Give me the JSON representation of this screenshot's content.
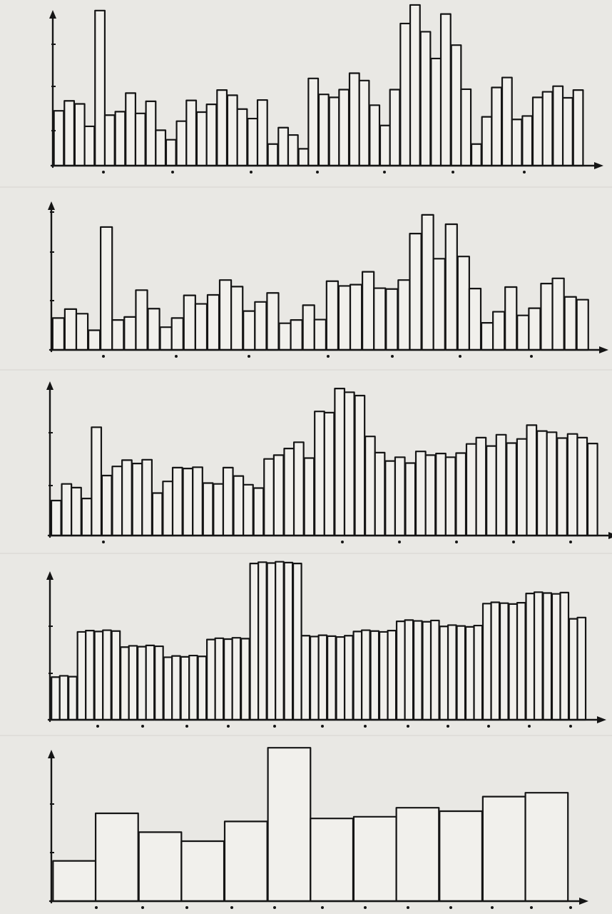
{
  "colors": {
    "paper": "#e9e8e4",
    "ink": "#151515",
    "bar_fill": "#f1f0ec"
  },
  "chart_data": [
    {
      "type": "bar",
      "title": "",
      "xlabel": "",
      "ylabel": "",
      "grid": false,
      "ylim": [
        0,
        3.6
      ],
      "values": [
        1.25,
        1.5,
        1.45,
        0.9,
        3.6,
        1.15,
        1.25,
        1.7,
        1.2,
        1.5,
        0.8,
        0.6,
        1.05,
        1.5,
        1.25,
        1.4,
        1.75,
        1.65,
        1.3,
        1.1,
        1.5,
        0.5,
        0.9,
        0.7,
        0.4,
        2.0,
        1.65,
        1.6,
        1.75,
        2.15,
        1.95,
        1.4,
        0.95,
        1.75,
        3.3,
        3.7,
        3.1,
        2.5,
        3.5,
        2.8,
        1.75,
        0.5,
        1.15,
        1.8,
        2.05,
        1.05,
        1.15,
        1.6,
        1.7,
        1.85,
        1.55,
        1.75
      ]
    },
    {
      "type": "bar",
      "title": "",
      "xlabel": "",
      "ylabel": "",
      "grid": false,
      "ylim": [
        0,
        3.6
      ],
      "values": [
        0.8,
        1.05,
        0.9,
        0.5,
        3.15,
        0.75,
        0.85,
        1.5,
        1.05,
        0.6,
        0.8,
        1.4,
        1.15,
        1.4,
        1.8,
        1.6,
        1.0,
        1.2,
        1.45,
        0.7,
        0.75,
        1.15,
        0.75,
        1.75,
        1.65,
        1.65,
        2.0,
        1.55,
        1.55,
        1.8,
        2.95,
        3.45,
        2.3,
        3.2,
        2.4,
        1.55,
        0.7,
        0.95,
        1.6,
        0.9,
        1.05,
        1.7,
        1.8,
        1.35,
        1.3
      ]
    },
    {
      "type": "bar",
      "title": "",
      "xlabel": "",
      "ylabel": "",
      "grid": false,
      "ylim": [
        0,
        3.6
      ],
      "values": [
        0.7,
        1.05,
        0.95,
        0.75,
        2.15,
        1.2,
        1.4,
        1.5,
        1.45,
        1.5,
        0.85,
        1.1,
        1.35,
        1.35,
        1.35,
        1.05,
        1.05,
        1.35,
        1.2,
        1.0,
        0.95,
        1.55,
        1.6,
        1.75,
        1.85,
        1.55,
        2.5,
        2.45,
        2.95,
        2.85,
        2.8,
        2.0,
        1.65,
        1.5,
        1.55,
        1.45,
        1.7,
        1.6,
        1.65,
        1.55,
        1.65,
        1.85,
        1.95,
        1.8,
        2.0,
        1.85,
        1.95,
        2.2,
        2.1,
        2.05,
        1.95,
        2.05,
        1.95,
        1.85
      ]
    },
    {
      "type": "bar",
      "title": "",
      "xlabel": "",
      "ylabel": "",
      "grid": false,
      "ylim": [
        0,
        3.6
      ],
      "values": [
        0.85,
        0.85,
        0.85,
        1.75,
        1.75,
        1.75,
        1.75,
        1.75,
        1.45,
        1.45,
        1.45,
        1.45,
        1.45,
        1.25,
        1.25,
        1.25,
        1.25,
        1.25,
        1.6,
        1.6,
        1.6,
        1.6,
        1.6,
        3.1,
        3.1,
        3.1,
        3.1,
        3.1,
        3.1,
        1.65,
        1.65,
        1.65,
        1.65,
        1.65,
        1.65,
        1.75,
        1.75,
        1.75,
        1.75,
        1.75,
        1.95,
        1.95,
        1.95,
        1.95,
        1.95,
        1.85,
        1.85,
        1.85,
        1.85,
        1.85,
        2.3,
        2.3,
        2.3,
        2.3,
        2.3,
        2.5,
        2.5,
        2.5,
        2.5,
        2.5,
        2.0,
        2.0
      ]
    },
    {
      "type": "bar",
      "title": "",
      "xlabel": "",
      "ylabel": "",
      "grid": false,
      "ylim": [
        0,
        3.6
      ],
      "values": [
        0.8,
        1.7,
        1.35,
        1.15,
        1.55,
        3.0,
        1.6,
        1.65,
        1.8,
        1.75,
        2.05,
        2.1
      ]
    }
  ]
}
